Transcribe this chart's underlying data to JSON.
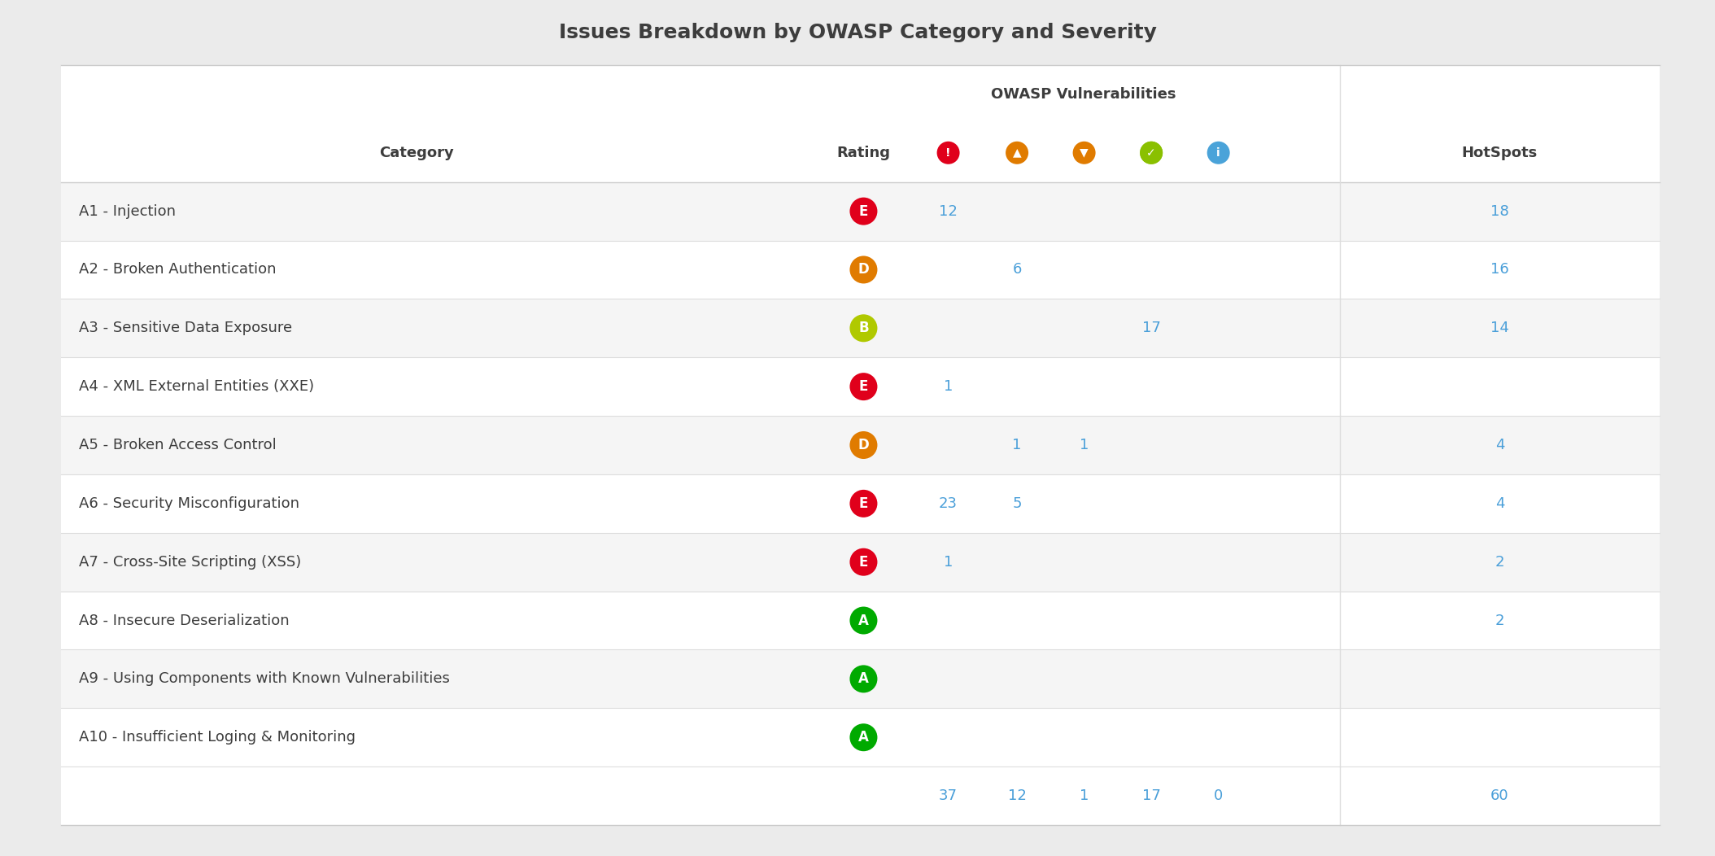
{
  "title": "Issues Breakdown by OWASP Category and Severity",
  "bg_color": "#ebebeb",
  "table_bg": "#ffffff",
  "row_alt_color": "#f5f5f5",
  "row_color": "#ffffff",
  "header_group": "OWASP Vulnerabilities",
  "categories": [
    "A1 - Injection",
    "A2 - Broken Authentication",
    "A3 - Sensitive Data Exposure",
    "A4 - XML External Entities (XXE)",
    "A5 - Broken Access Control",
    "A6 - Security Misconfiguration",
    "A7 - Cross-Site Scripting (XSS)",
    "A8 - Insecure Deserialization",
    "A9 - Using Components with Known Vulnerabilities",
    "A10 - Insufficient Loging & Monitoring"
  ],
  "ratings": [
    "E",
    "D",
    "B",
    "E",
    "D",
    "E",
    "E",
    "A",
    "A",
    "A"
  ],
  "rating_colors": [
    "#e0001b",
    "#e07b00",
    "#b0c900",
    "#e0001b",
    "#e07b00",
    "#e0001b",
    "#e0001b",
    "#00aa00",
    "#00aa00",
    "#00aa00"
  ],
  "col1_vals": [
    12,
    null,
    null,
    1,
    null,
    23,
    1,
    null,
    null,
    null
  ],
  "col2_vals": [
    null,
    6,
    null,
    null,
    1,
    5,
    null,
    null,
    null,
    null
  ],
  "col3_vals": [
    null,
    null,
    null,
    null,
    1,
    null,
    null,
    null,
    null,
    null
  ],
  "col4_vals": [
    null,
    null,
    17,
    null,
    null,
    null,
    null,
    null,
    null,
    null
  ],
  "col5_vals": [
    null,
    null,
    null,
    null,
    null,
    null,
    null,
    null,
    null,
    null
  ],
  "hotspots": [
    18,
    16,
    14,
    null,
    4,
    4,
    2,
    2,
    null,
    null
  ],
  "totals": [
    37,
    12,
    1,
    17,
    0,
    60
  ],
  "icon_bg_colors": [
    "#e0001b",
    "#e07b00",
    "#e07b00",
    "#8ac000",
    "#4aa3d9"
  ],
  "icon_symbols": [
    "!",
    "▲",
    "▼",
    "✓",
    "i"
  ],
  "text_color": "#3d3d3d",
  "value_color": "#4a9fd9",
  "title_fontsize": 18,
  "header_fontsize": 13,
  "cell_fontsize": 13,
  "badge_fontsize": 12
}
